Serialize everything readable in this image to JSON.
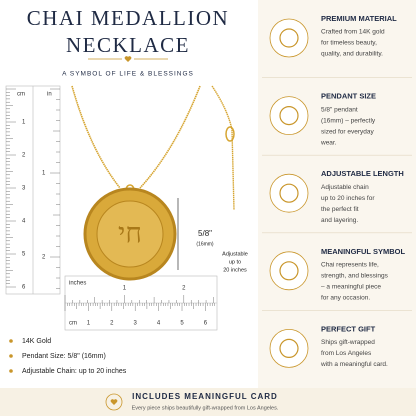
{
  "header": {
    "title_line1": "CHAI MEDALLION",
    "title_line2": "NECKLACE",
    "subtitle": "A SYMBOL OF LIFE & BLESSINGS"
  },
  "vertical_ruler": {
    "cm_unit": "cm",
    "in_unit": "in",
    "cm_labels": [
      1,
      2,
      3,
      4,
      5,
      6
    ],
    "in_labels": [
      1,
      2
    ]
  },
  "horizontal_ruler": {
    "in_unit": "inches",
    "cm_unit": "cm",
    "in_labels": [
      1,
      2
    ],
    "cm_labels": [
      1,
      2,
      3,
      4,
      5,
      6
    ]
  },
  "pendant_size": {
    "label": "5/8\"",
    "sub": "(16mm)"
  },
  "adjustable_note": [
    "Adjustable",
    "up to",
    "20 inches"
  ],
  "bullets": [
    "14K Gold",
    "Pendant Size: 5/8\" (16mm)",
    "Adjustable Chain: up to 20 inches"
  ],
  "features": [
    {
      "title": "PREMIUM MATERIAL",
      "lines": [
        "Crafted from 14K gold",
        "for timeless beauty,",
        "quality, and durability."
      ]
    },
    {
      "title": "PENDANT SIZE",
      "lines": [
        "5/8\" pendant",
        "(16mm) – perfectly",
        "sized for everyday",
        "wear."
      ]
    },
    {
      "title": "ADJUSTABLE LENGTH",
      "lines": [
        "Adjustable chain",
        "up to 20 inches for",
        "the perfect fit",
        "and layering."
      ]
    },
    {
      "title": "MEANINGFUL SYMBOL",
      "lines": [
        "Chai represents life,",
        "strength, and blessings",
        "– a meaningful piece",
        "for any occasion."
      ]
    },
    {
      "title": "PERFECT GIFT",
      "lines": [
        "Ships gift-wrapped",
        "from Los Angeles",
        "with a meaningful card."
      ]
    }
  ],
  "banner": {
    "title": "INCLUDES MEANINGFUL CARD",
    "text": "Every piece ships beautifully gift-wrapped from Los Angeles."
  }
}
